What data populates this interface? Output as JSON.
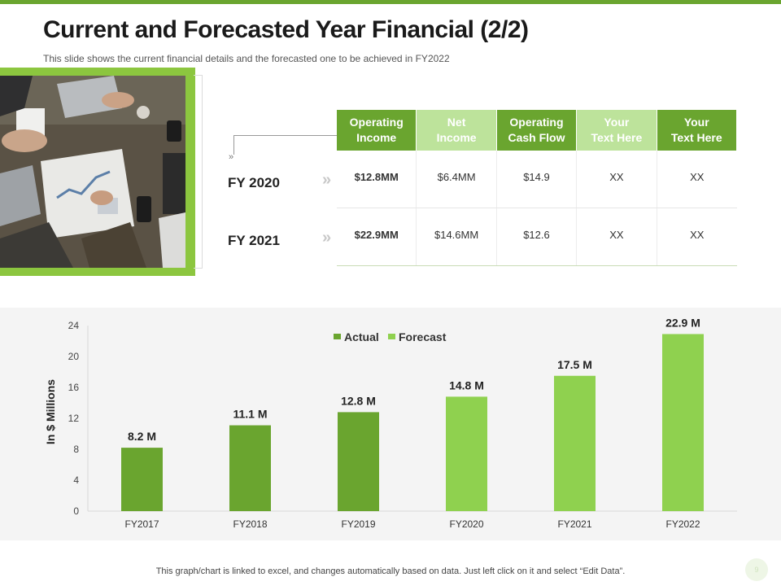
{
  "slide": {
    "title": "Current and Forecasted Year Financial (2/2)",
    "subtitle": "This slide shows the current financial details and the forecasted one to be achieved in FY2022",
    "footnote": "This graph/chart is linked to excel,  and changes automatically based on data. Just left click on it and select “Edit Data”.",
    "page_number": "9",
    "accent_color": "#6aa52f",
    "light_color": "#8cc63f"
  },
  "table": {
    "headers": [
      {
        "label": "Operating\nIncome",
        "tone": "dark"
      },
      {
        "label": "Net\nIncome",
        "tone": "light"
      },
      {
        "label": "Operating\nCash Flow",
        "tone": "dark"
      },
      {
        "label": "Your\nText Here",
        "tone": "light"
      },
      {
        "label": "Your\nText Here",
        "tone": "dark"
      }
    ],
    "rows": [
      {
        "label": "FY 2020",
        "cells": [
          "$12.8MM",
          "$6.4MM",
          "$14.9",
          "XX",
          "XX"
        ]
      },
      {
        "label": "FY 2021",
        "cells": [
          "$22.9MM",
          "$14.6MM",
          "$12.6",
          "XX",
          "XX"
        ]
      }
    ]
  },
  "chart_data": {
    "type": "bar",
    "categories": [
      "FY2017",
      "FY2018",
      "FY2019",
      "FY2020",
      "FY2021",
      "FY2022"
    ],
    "values": [
      8.2,
      11.1,
      12.8,
      14.8,
      17.5,
      22.9
    ],
    "data_labels": [
      "8.2 M",
      "11.1 M",
      "12.8 M",
      "14.8 M",
      "17.5 M",
      "22.9 M"
    ],
    "series_type": [
      "Actual",
      "Actual",
      "Actual",
      "Forecast",
      "Forecast",
      "Forecast"
    ],
    "legend": [
      {
        "name": "Actual",
        "color": "#6aa52f"
      },
      {
        "name": "Forecast",
        "color": "#8fd14f"
      }
    ],
    "legend_position": "top-center",
    "ylabel": "In $ Millions",
    "xlabel": "",
    "ylim": [
      0,
      24
    ],
    "yticks": [
      0,
      4,
      8,
      12,
      16,
      20,
      24
    ],
    "grid": false
  }
}
